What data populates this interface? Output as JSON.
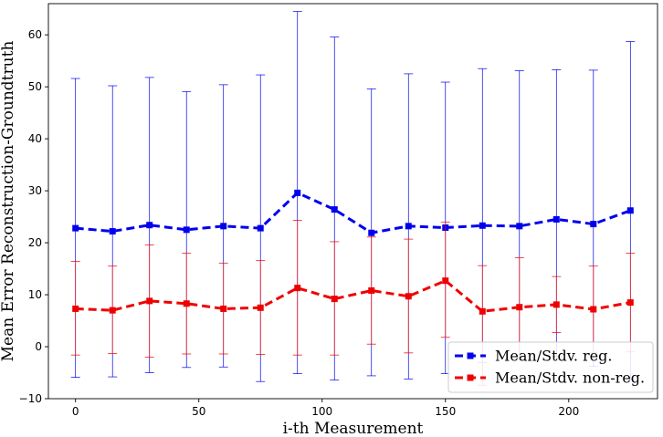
{
  "chart_data": {
    "type": "line",
    "xlabel": "i-th Measurement",
    "ylabel": "Mean Error Reconstruction-Groundtruth",
    "xlim": [
      -11,
      236
    ],
    "ylim": [
      -10,
      66
    ],
    "xticks": [
      0,
      50,
      100,
      150,
      200
    ],
    "yticks": [
      -10,
      0,
      10,
      20,
      30,
      40,
      50,
      60
    ],
    "grid": false,
    "legend_position": "lower-right",
    "x": [
      0,
      15,
      30,
      45,
      60,
      75,
      90,
      105,
      120,
      135,
      150,
      165,
      180,
      195,
      210,
      225
    ],
    "series": [
      {
        "name": "Mean/Stdv. reg.",
        "color": "#0000ee",
        "marker": "square",
        "linestyle": "dashed",
        "values": [
          22.8,
          22.2,
          23.4,
          22.5,
          23.2,
          22.8,
          29.6,
          26.4,
          21.9,
          23.2,
          22.9,
          23.3,
          23.2,
          24.5,
          23.6,
          26.2
        ],
        "upper": [
          51.6,
          50.2,
          51.8,
          49.1,
          50.4,
          52.3,
          64.5,
          59.6,
          49.6,
          52.5,
          50.9,
          53.5,
          53.1,
          53.3,
          53.2,
          58.7
        ],
        "lower": [
          -5.9,
          -5.8,
          -5.0,
          -4.0,
          -3.9,
          -6.7,
          -5.2,
          -6.4,
          -5.6,
          -6.2,
          -5.2,
          -3.0,
          -2.1,
          -1.9,
          -3.8,
          -6.3
        ]
      },
      {
        "name": "Mean/Stdv. non-reg.",
        "color": "#ee0000",
        "marker": "square",
        "linestyle": "dashed",
        "values": [
          7.3,
          7.0,
          8.8,
          8.3,
          7.3,
          7.5,
          11.3,
          9.2,
          10.8,
          9.7,
          12.7,
          6.8,
          7.6,
          8.1,
          7.2,
          8.5
        ],
        "upper": [
          16.4,
          15.5,
          19.6,
          18.0,
          16.1,
          16.6,
          24.3,
          20.2,
          21.1,
          20.7,
          24.0,
          15.6,
          17.1,
          13.5,
          15.5,
          18.0
        ],
        "lower": [
          -1.6,
          -1.3,
          -2.0,
          -1.4,
          -1.4,
          -1.5,
          -1.6,
          -1.6,
          0.5,
          -1.2,
          1.8,
          -7.4,
          -1.8,
          2.7,
          -1.2,
          -1.0
        ]
      }
    ]
  }
}
